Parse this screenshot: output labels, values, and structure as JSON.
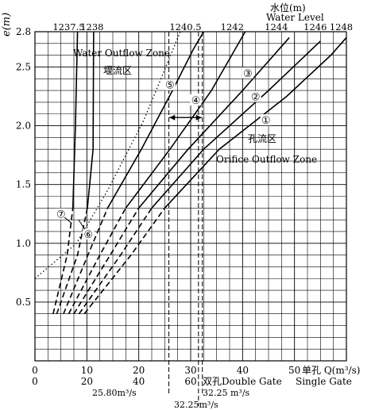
{
  "chart_data": {
    "type": "line",
    "title": "",
    "ylabel": "e(m)",
    "ylim": [
      0,
      2.8
    ],
    "y_ticks": [
      0.5,
      1.0,
      1.5,
      2.0,
      2.5,
      2.8
    ],
    "x_single": {
      "label": "单孔 Q(m³/s)",
      "label_en": "Single Gate",
      "unit_note": "单孔 Q(m",
      "ticks": [
        0,
        10,
        20,
        30,
        40,
        50
      ],
      "xlim": [
        0,
        60
      ]
    },
    "x_double": {
      "label": "双孔Double Gate",
      "ticks": [
        0,
        20,
        40,
        60
      ],
      "xlim": [
        0,
        120
      ]
    },
    "top_axis_title": "水位(m)",
    "top_axis_title_en": "Water Level",
    "water_levels": [
      "1237.5",
      "1238",
      "1240.5",
      "1242",
      "1244",
      "1246",
      "1248"
    ],
    "zones": {
      "weir_cn": "堰流区",
      "weir_en": "Water Outflow Zone",
      "orifice_cn": "孔流区",
      "orifice_en": "Orifice Outflow Zone"
    },
    "curve_labels": [
      "①",
      "②",
      "③",
      "④",
      "⑤",
      "⑥",
      "⑦"
    ],
    "reference_lines": {
      "q1": "25.80m³/s",
      "q2": "32.25 m³/s",
      "q3": "32.25m³/s"
    },
    "series": [
      {
        "name": "1237.5",
        "x": [
          3.5,
          6.2,
          7.3,
          7.8,
          8.2
        ],
        "y": [
          0.4,
          0.9,
          1.3,
          2.0,
          2.8
        ]
      },
      {
        "name": "1238",
        "x": [
          4.2,
          8.2,
          10.1,
          11.2,
          11.3
        ],
        "y": [
          0.4,
          0.9,
          1.3,
          1.8,
          2.8
        ]
      },
      {
        "name": "1240.5",
        "x": [
          5.5,
          10.2,
          14.0,
          20.5,
          26.5,
          30.5,
          32.5
        ],
        "y": [
          0.4,
          0.9,
          1.3,
          1.8,
          2.3,
          2.65,
          2.8
        ]
      },
      {
        "name": "1242",
        "x": [
          6.5,
          12.5,
          17.5,
          26.0,
          34.0,
          40.5
        ],
        "y": [
          0.4,
          0.9,
          1.3,
          1.8,
          2.3,
          2.8
        ]
      },
      {
        "name": "1244",
        "x": [
          7.5,
          14.5,
          20.0,
          29.5,
          40.0,
          49.0
        ],
        "y": [
          0.4,
          0.9,
          1.3,
          1.8,
          2.3,
          2.75
        ]
      },
      {
        "name": "1246",
        "x": [
          8.5,
          16.5,
          22.5,
          32.5,
          45.0,
          55.0
        ],
        "y": [
          0.4,
          0.9,
          1.3,
          1.8,
          2.3,
          2.72
        ]
      },
      {
        "name": "1248",
        "x": [
          9.5,
          18.5,
          25.0,
          35.5,
          48.5,
          57.0,
          60.0
        ],
        "y": [
          0.4,
          0.9,
          1.3,
          1.8,
          2.25,
          2.6,
          2.75
        ]
      },
      {
        "name": "weir-orifice boundary",
        "x": [
          0,
          8.0,
          14.0,
          21.0,
          28.0
        ],
        "y": [
          0.7,
          1.0,
          1.45,
          2.05,
          2.8
        ]
      }
    ]
  }
}
